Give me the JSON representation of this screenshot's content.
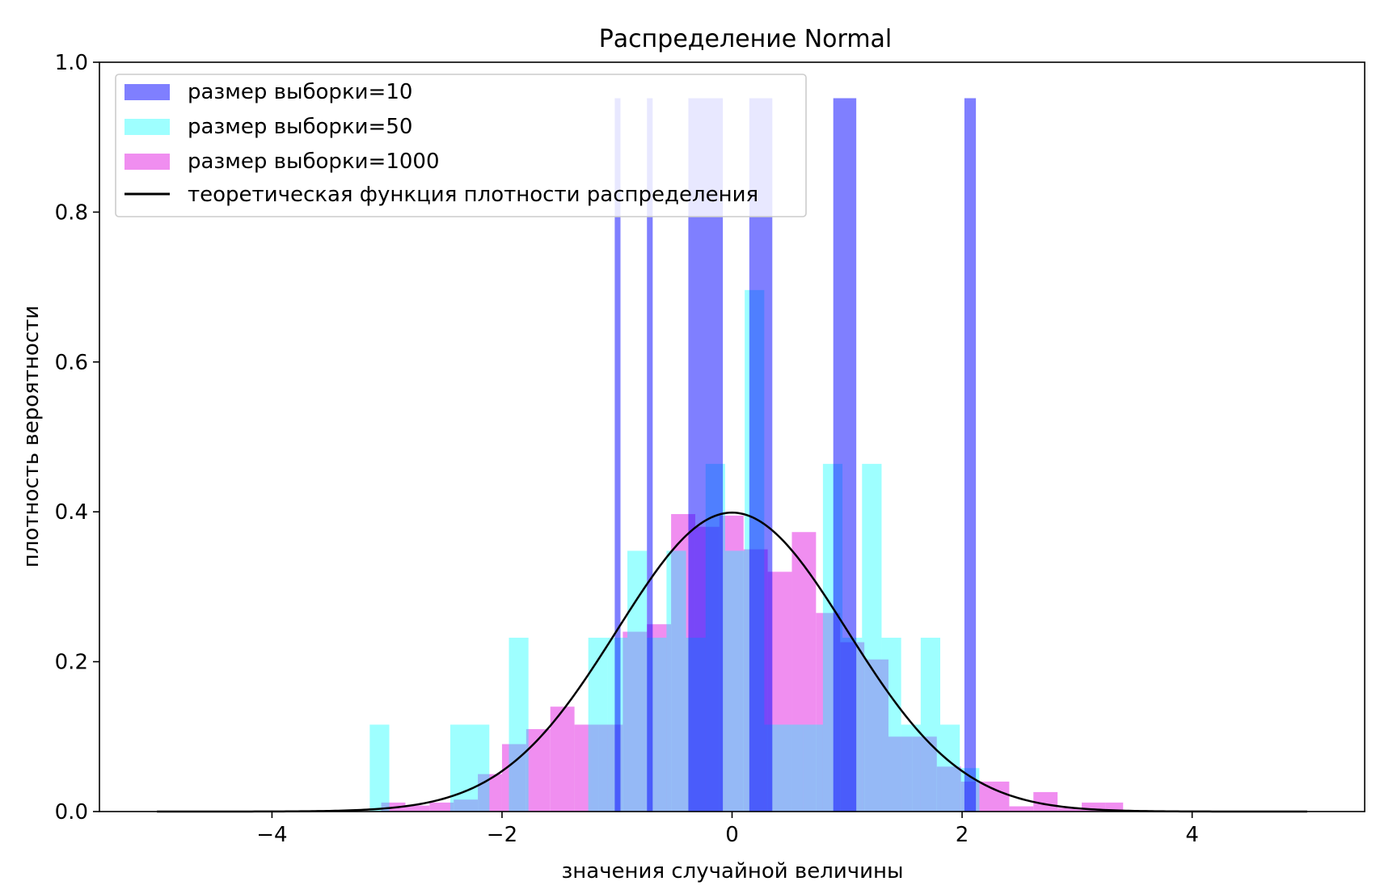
{
  "chart_data": {
    "type": "bar",
    "title": "Распределение Normal",
    "xlabel": "значения случайной величины",
    "ylabel": "плотность вероятности",
    "xlim": [
      -5.5,
      5.5
    ],
    "ylim": [
      0,
      1.0
    ],
    "xticks": [
      -4,
      -2,
      0,
      2,
      4
    ],
    "xtick_labels": [
      "−4",
      "−2",
      "0",
      "2",
      "4"
    ],
    "yticks": [
      0.0,
      0.2,
      0.4,
      0.6,
      0.8,
      1.0
    ],
    "ytick_labels": [
      "0.0",
      "0.2",
      "0.4",
      "0.6",
      "0.8",
      "1.0"
    ],
    "grid": false,
    "legend_position": "top-left",
    "series": [
      {
        "name": "размер выборки=1000",
        "color": "#ee82ee",
        "opacity": 0.9,
        "bins": [
          {
            "x0": -3.05,
            "x1": -2.84,
            "h": 0.012
          },
          {
            "x0": -2.84,
            "x1": -2.63,
            "h": 0.008
          },
          {
            "x0": -2.63,
            "x1": -2.42,
            "h": 0.012
          },
          {
            "x0": -2.42,
            "x1": -2.21,
            "h": 0.016
          },
          {
            "x0": -2.21,
            "x1": -2.0,
            "h": 0.05
          },
          {
            "x0": -2.0,
            "x1": -1.79,
            "h": 0.09
          },
          {
            "x0": -1.79,
            "x1": -1.58,
            "h": 0.11
          },
          {
            "x0": -1.58,
            "x1": -1.37,
            "h": 0.14
          },
          {
            "x0": -1.37,
            "x1": -1.16,
            "h": 0.116
          },
          {
            "x0": -1.16,
            "x1": -0.95,
            "h": 0.116
          },
          {
            "x0": -0.95,
            "x1": -0.74,
            "h": 0.24
          },
          {
            "x0": -0.74,
            "x1": -0.53,
            "h": 0.25
          },
          {
            "x0": -0.53,
            "x1": -0.32,
            "h": 0.397
          },
          {
            "x0": -0.32,
            "x1": -0.11,
            "h": 0.38
          },
          {
            "x0": -0.11,
            "x1": 0.1,
            "h": 0.395
          },
          {
            "x0": 0.1,
            "x1": 0.31,
            "h": 0.35
          },
          {
            "x0": 0.31,
            "x1": 0.52,
            "h": 0.32
          },
          {
            "x0": 0.52,
            "x1": 0.73,
            "h": 0.373
          },
          {
            "x0": 0.73,
            "x1": 0.94,
            "h": 0.265
          },
          {
            "x0": 0.94,
            "x1": 1.15,
            "h": 0.226
          },
          {
            "x0": 1.15,
            "x1": 1.36,
            "h": 0.203
          },
          {
            "x0": 1.36,
            "x1": 1.57,
            "h": 0.1
          },
          {
            "x0": 1.57,
            "x1": 1.78,
            "h": 0.1
          },
          {
            "x0": 1.78,
            "x1": 1.99,
            "h": 0.06
          },
          {
            "x0": 1.99,
            "x1": 2.2,
            "h": 0.04
          },
          {
            "x0": 2.2,
            "x1": 2.41,
            "h": 0.04
          },
          {
            "x0": 2.41,
            "x1": 2.62,
            "h": 0.007
          },
          {
            "x0": 2.62,
            "x1": 2.83,
            "h": 0.026
          },
          {
            "x0": 2.83,
            "x1": 3.04,
            "h": 0.005
          },
          {
            "x0": 3.04,
            "x1": 3.25,
            "h": 0.012
          },
          {
            "x0": 3.25,
            "x1": 3.4,
            "h": 0.012
          }
        ]
      },
      {
        "name": "размер выборки=50",
        "color": "#00ffff",
        "opacity": 0.38,
        "bins": [
          {
            "x0": -3.15,
            "x1": -2.98,
            "h": 0.116
          },
          {
            "x0": -2.45,
            "x1": -2.11,
            "h": 0.116
          },
          {
            "x0": -1.94,
            "x1": -1.77,
            "h": 0.232
          },
          {
            "x0": -1.25,
            "x1": -1.08,
            "h": 0.232
          },
          {
            "x0": -1.08,
            "x1": -0.91,
            "h": 0.232
          },
          {
            "x0": -0.91,
            "x1": -0.74,
            "h": 0.348
          },
          {
            "x0": -0.74,
            "x1": -0.57,
            "h": 0.232
          },
          {
            "x0": -0.57,
            "x1": -0.4,
            "h": 0.348
          },
          {
            "x0": -0.4,
            "x1": -0.23,
            "h": 0.232
          },
          {
            "x0": -0.23,
            "x1": -0.06,
            "h": 0.464
          },
          {
            "x0": -0.06,
            "x1": 0.11,
            "h": 0.348
          },
          {
            "x0": 0.11,
            "x1": 0.28,
            "h": 0.696
          },
          {
            "x0": 0.28,
            "x1": 0.45,
            "h": 0.116
          },
          {
            "x0": 0.45,
            "x1": 0.62,
            "h": 0.116
          },
          {
            "x0": 0.62,
            "x1": 0.79,
            "h": 0.116
          },
          {
            "x0": 0.79,
            "x1": 0.96,
            "h": 0.464
          },
          {
            "x0": 0.96,
            "x1": 1.13,
            "h": 0.232
          },
          {
            "x0": 1.13,
            "x1": 1.3,
            "h": 0.464
          },
          {
            "x0": 1.3,
            "x1": 1.47,
            "h": 0.232
          },
          {
            "x0": 1.47,
            "x1": 1.64,
            "h": 0.116
          },
          {
            "x0": 1.64,
            "x1": 1.81,
            "h": 0.232
          },
          {
            "x0": 1.81,
            "x1": 1.98,
            "h": 0.116
          },
          {
            "x0": 1.98,
            "x1": 2.15,
            "h": 0.058
          }
        ]
      },
      {
        "name": "размер выборки=10",
        "color": "#0000ff",
        "opacity": 0.5,
        "bins": [
          {
            "x0": -1.02,
            "x1": -0.97,
            "h": 0.952
          },
          {
            "x0": -0.74,
            "x1": -0.69,
            "h": 0.952
          },
          {
            "x0": -0.38,
            "x1": -0.08,
            "h": 0.952
          },
          {
            "x0": 0.15,
            "x1": 0.35,
            "h": 0.952
          },
          {
            "x0": 0.88,
            "x1": 1.08,
            "h": 0.952
          },
          {
            "x0": 2.02,
            "x1": 2.12,
            "h": 0.952
          }
        ]
      }
    ],
    "pdf": {
      "name": "теоретическая функция плотности распределения",
      "color": "#000000",
      "mu": 0,
      "sigma": 1,
      "x_range": [
        -5,
        5
      ]
    }
  }
}
